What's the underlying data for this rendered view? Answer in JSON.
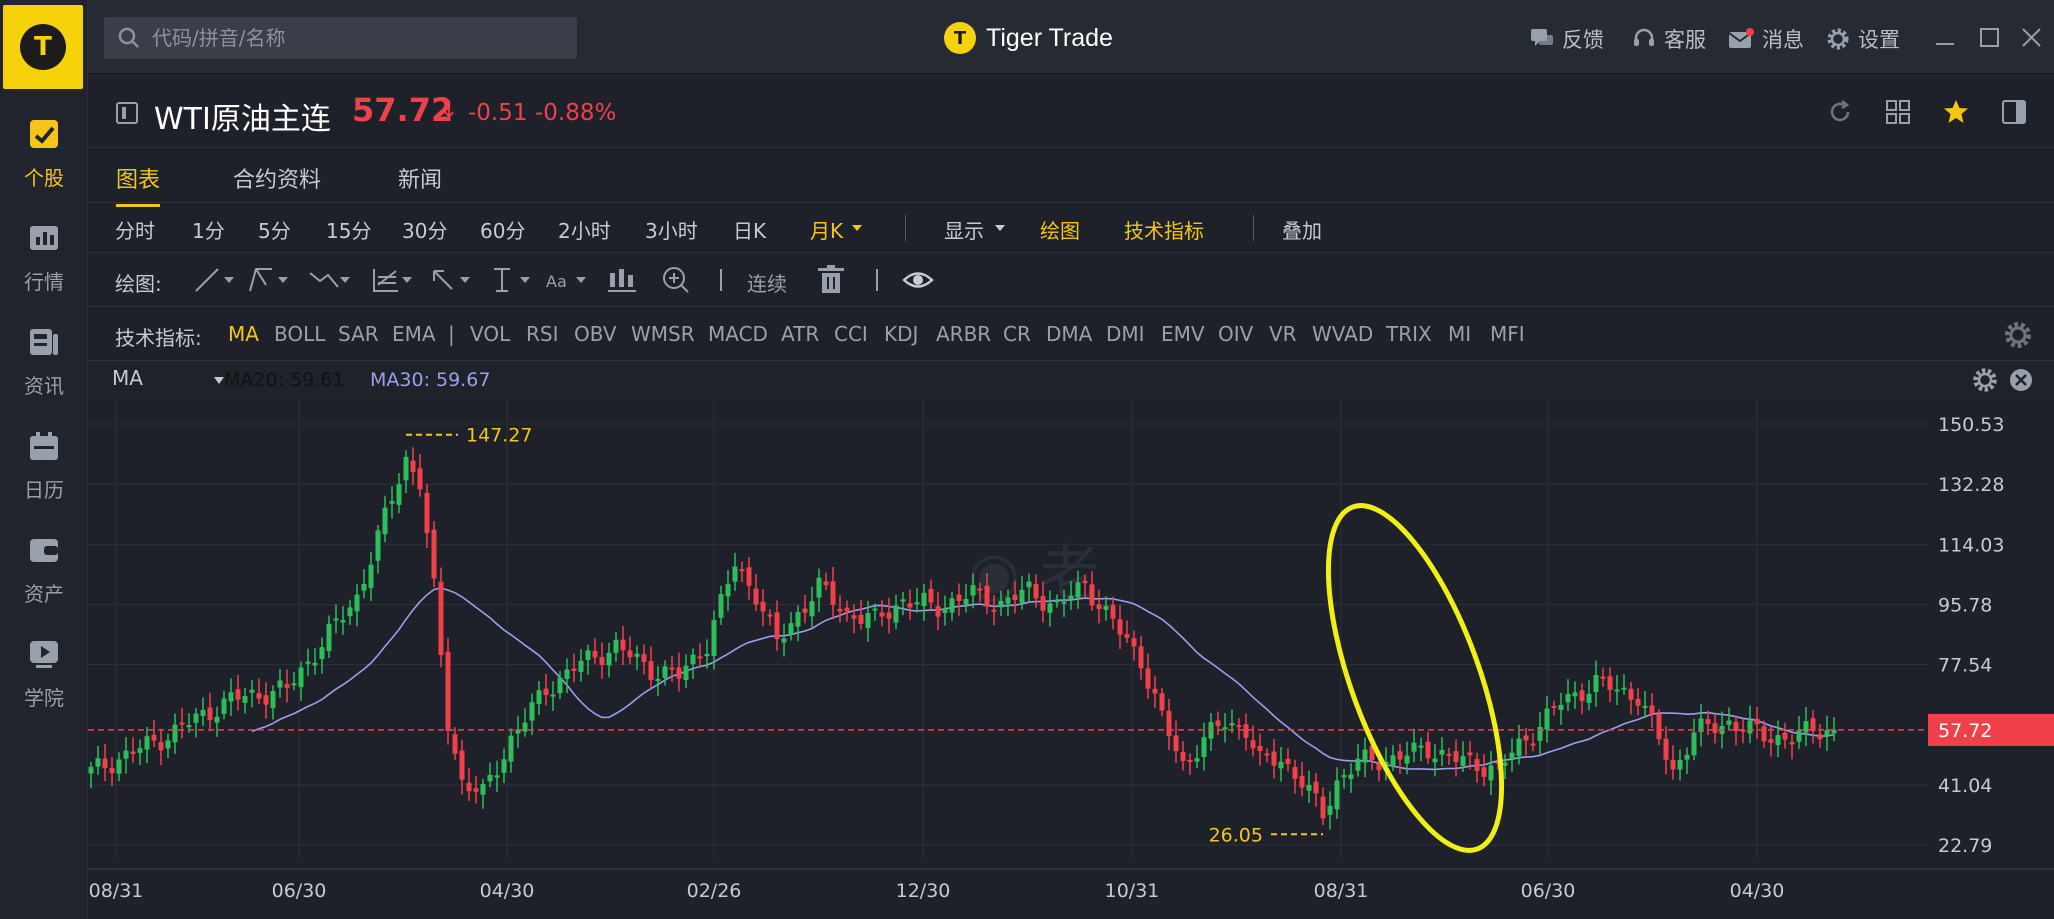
{
  "sidebar": {
    "items": [
      {
        "label": "个股",
        "icon": "chart-check-icon"
      },
      {
        "label": "行情",
        "icon": "bar-chart-icon"
      },
      {
        "label": "资讯",
        "icon": "news-icon"
      },
      {
        "label": "日历",
        "icon": "calendar-icon"
      },
      {
        "label": "资产",
        "icon": "wallet-icon"
      },
      {
        "label": "学院",
        "icon": "play-icon"
      }
    ]
  },
  "titlebar": {
    "search_placeholder": "代码/拼音/名称",
    "app_name": "Tiger Trade",
    "feedback": "反馈",
    "service": "客服",
    "messages": "消息",
    "settings": "设置"
  },
  "symbol": {
    "name": "WTI原油主连",
    "price": "57.72",
    "arrow": "↓",
    "change": "-0.51",
    "change_pct": "-0.88%"
  },
  "tabs": [
    "图表",
    "合约资料",
    "新闻"
  ],
  "periods": [
    "分时",
    "1分",
    "5分",
    "15分",
    "30分",
    "60分",
    "2小时",
    "3小时",
    "日K",
    "月K"
  ],
  "chart_menu": {
    "display": "显示",
    "draw": "绘图",
    "indicators": "技术指标",
    "overlay": "叠加"
  },
  "drawing": {
    "label": "绘图:",
    "continuous": "连续"
  },
  "indicators": {
    "label": "技术指标:",
    "list": [
      "MA",
      "BOLL",
      "SAR",
      "EMA",
      "|",
      "VOL",
      "RSI",
      "OBV",
      "WMSR",
      "MACD",
      "ATR",
      "CCI",
      "KDJ",
      "ARBR",
      "CR",
      "DMA",
      "DMI",
      "EMV",
      "OIV",
      "VR",
      "WVAD",
      "TRIX",
      "MI",
      "MFI"
    ]
  },
  "ma_legend": {
    "select": "MA",
    "ma20": "MA20: 59.61",
    "ma30": "MA30: 59.67"
  },
  "colors": {
    "accent": "#f5c518",
    "up": "#2dbe5b",
    "down": "#f0404a",
    "ma": "#9aa0ea",
    "background": "#1e2129"
  },
  "chart_data": {
    "type": "candlestick",
    "instrument": "WTI原油主连",
    "period": "月K",
    "y_ticks": [
      150.53,
      132.28,
      114.03,
      95.78,
      77.54,
      57.72,
      41.04,
      22.79
    ],
    "x_ticks": [
      "08/31",
      "06/30",
      "04/30",
      "02/26",
      "12/30",
      "10/31",
      "08/31",
      "06/30",
      "04/30"
    ],
    "last_price": "57.72",
    "annotations": {
      "high": "147.27",
      "low": "26.05"
    },
    "ma_series_name": "MA30",
    "anchors": [
      [
        0,
        45
      ],
      [
        10,
        55
      ],
      [
        20,
        67
      ],
      [
        28,
        70
      ],
      [
        38,
        98
      ],
      [
        45,
        140
      ],
      [
        47,
        133
      ],
      [
        49,
        100
      ],
      [
        51,
        60
      ],
      [
        53,
        42
      ],
      [
        56,
        38
      ],
      [
        60,
        55
      ],
      [
        65,
        70
      ],
      [
        70,
        78
      ],
      [
        75,
        83
      ],
      [
        80,
        76
      ],
      [
        84,
        74
      ],
      [
        88,
        84
      ],
      [
        92,
        108
      ],
      [
        95,
        99
      ],
      [
        98,
        84
      ],
      [
        101,
        93
      ],
      [
        104,
        101
      ],
      [
        108,
        93
      ],
      [
        112,
        91
      ],
      [
        116,
        97
      ],
      [
        121,
        95
      ],
      [
        126,
        99
      ],
      [
        130,
        96
      ],
      [
        134,
        100
      ],
      [
        138,
        95
      ],
      [
        142,
        102
      ],
      [
        145,
        93
      ],
      [
        150,
        79
      ],
      [
        153,
        61
      ],
      [
        156,
        47
      ],
      [
        159,
        55
      ],
      [
        162,
        60
      ],
      [
        165,
        58
      ],
      [
        167,
        48
      ],
      [
        170,
        49
      ],
      [
        173,
        42
      ],
      [
        176,
        32
      ],
      [
        178,
        42
      ],
      [
        181,
        48
      ],
      [
        186,
        49
      ],
      [
        191,
        52
      ],
      [
        196,
        48
      ],
      [
        201,
        46
      ],
      [
        205,
        55
      ],
      [
        210,
        66
      ],
      [
        215,
        72
      ],
      [
        221,
        68
      ],
      [
        224,
        55
      ],
      [
        226,
        45
      ],
      [
        229,
        57
      ],
      [
        234,
        60
      ],
      [
        239,
        56
      ],
      [
        243,
        55
      ],
      [
        246,
        58
      ],
      [
        249,
        57.72
      ]
    ]
  }
}
